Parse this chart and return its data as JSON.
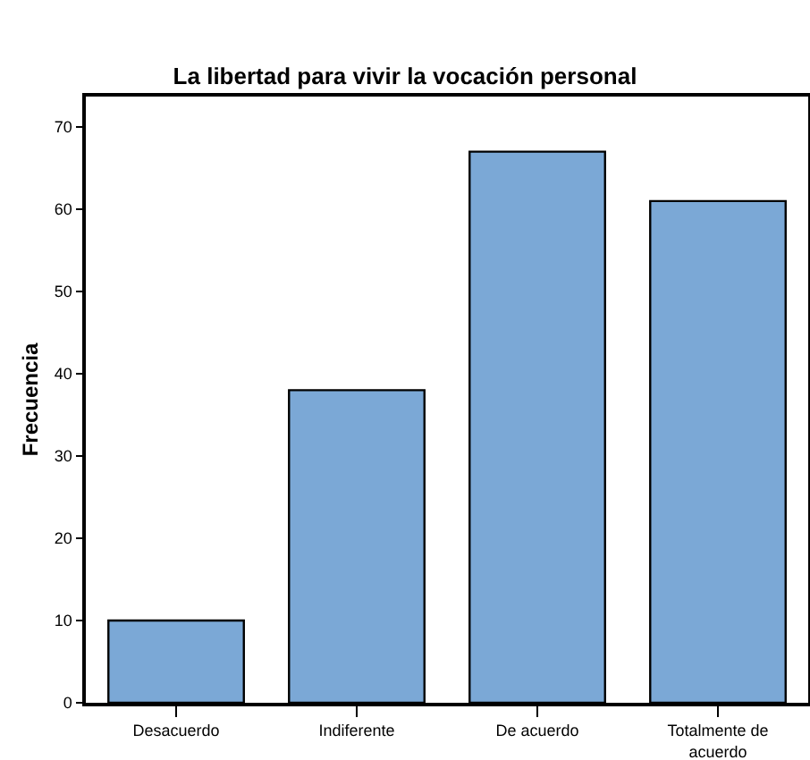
{
  "chart_data": {
    "type": "bar",
    "title": "La libertad para vivir la vocación personal",
    "ylabel": "Frecuencia",
    "categories": [
      "Desacuerdo",
      "Indiferente",
      "De acuerdo",
      "Totalmente de acuerdo"
    ],
    "values": [
      10,
      38,
      67,
      61
    ],
    "color": "#7ba8d6",
    "ylim": [
      0,
      73.7
    ],
    "yticks": [
      0,
      10,
      20,
      30,
      40,
      50,
      60,
      70
    ],
    "grid": false
  }
}
